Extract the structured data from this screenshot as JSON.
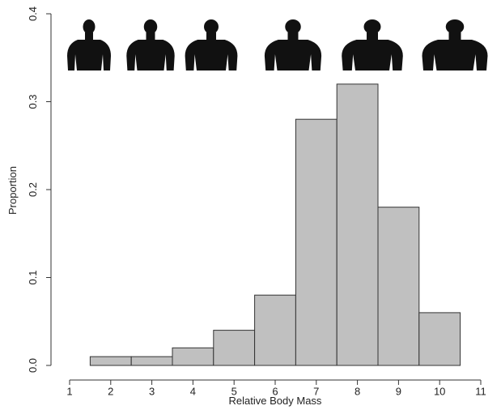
{
  "chart_data": {
    "type": "bar",
    "xlabel": "Relative Body Mass",
    "ylabel": "Proportion",
    "categories": [
      "2",
      "3",
      "4",
      "5",
      "6",
      "7",
      "8",
      "9",
      "10"
    ],
    "values": [
      0.01,
      0.01,
      0.02,
      0.04,
      0.08,
      0.28,
      0.32,
      0.18,
      0.06
    ],
    "x_ticks": [
      "1",
      "2",
      "3",
      "4",
      "5",
      "6",
      "7",
      "8",
      "9",
      "10",
      "11"
    ],
    "y_ticks": [
      "0.0",
      "0.1",
      "0.2",
      "0.3",
      "0.4"
    ],
    "ylim": [
      0,
      0.4
    ],
    "xlim": [
      1,
      11
    ],
    "grid": false,
    "bar_color": "#c0c0c0",
    "bar_edge_color": "#333333",
    "silhouette_color": "#111111",
    "silhouettes": [
      {
        "icon": "body-silhouette-icon",
        "scale": 1.0
      },
      {
        "icon": "body-silhouette-icon",
        "scale": 1.1
      },
      {
        "icon": "body-silhouette-icon",
        "scale": 1.2
      },
      {
        "icon": "body-silhouette-icon",
        "scale": 1.3
      },
      {
        "icon": "body-silhouette-icon",
        "scale": 1.4
      },
      {
        "icon": "body-silhouette-icon",
        "scale": 1.5
      }
    ]
  }
}
